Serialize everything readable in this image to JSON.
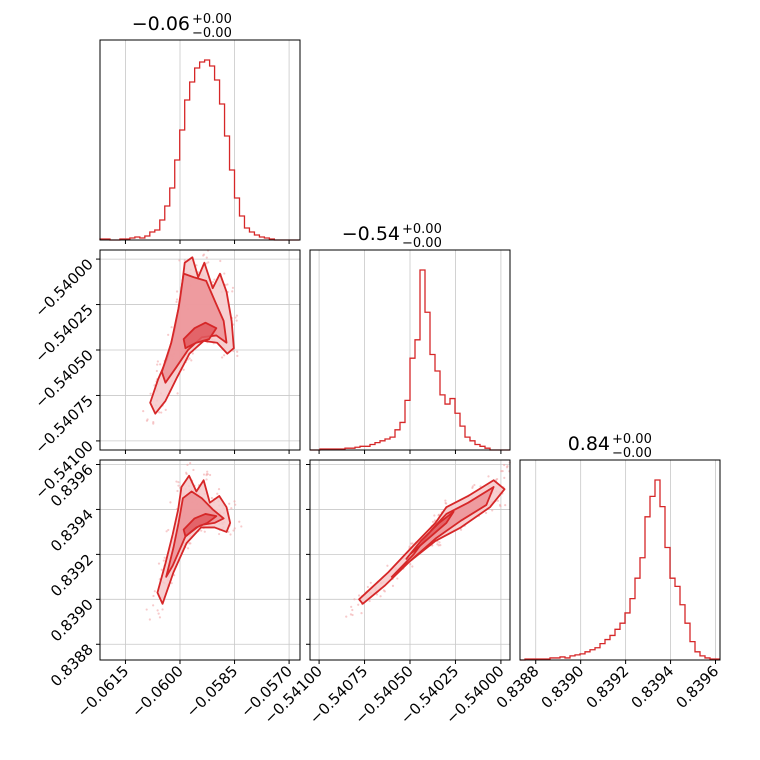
{
  "chart_data": {
    "type": "corner",
    "color": "#d62728",
    "fill_colors": [
      "#f6c8c9",
      "#ec9296",
      "#e05a5f"
    ],
    "grid": true,
    "parameters": [
      {
        "title": "−0.06",
        "title_sup": "+0.00",
        "title_sub": "−0.00",
        "range": [
          -0.0622,
          -0.0567
        ],
        "ticks": [
          -0.0615,
          -0.06,
          -0.0585,
          -0.057
        ],
        "tick_labels": [
          "−0.0615",
          "−0.0600",
          "−0.0585",
          "−0.0570"
        ],
        "histogram": {
          "start": -0.0622,
          "bin_width": 0.000137,
          "counts": [
            1,
            1,
            0,
            0,
            1,
            1,
            2,
            3,
            2,
            4,
            8,
            10,
            20,
            34,
            52,
            80,
            110,
            140,
            158,
            172,
            178,
            180,
            174,
            160,
            136,
            104,
            70,
            42,
            24,
            12,
            8,
            5,
            3,
            2,
            1,
            0,
            0,
            0,
            0,
            0
          ]
        }
      },
      {
        "title": "−0.54",
        "title_sup": "+0.00",
        "title_sub": "−0.00",
        "range": [
          -0.54105,
          -0.53995
        ],
        "ticks": [
          -0.541,
          -0.54075,
          -0.5405,
          -0.54025,
          -0.54
        ],
        "tick_labels": [
          "−0.54100",
          "−0.54075",
          "−0.54050",
          "−0.54025",
          "−0.54000"
        ],
        "histogram": {
          "start": -0.54105,
          "bin_width": 2.75e-05,
          "counts": [
            0,
            0,
            1,
            1,
            1,
            1,
            1,
            2,
            2,
            3,
            4,
            4,
            6,
            8,
            10,
            12,
            14,
            22,
            30,
            54,
            100,
            120,
            196,
            150,
            104,
            86,
            60,
            50,
            56,
            40,
            26,
            14,
            10,
            6,
            4,
            2,
            0,
            0,
            0,
            0
          ]
        }
      },
      {
        "title": "0.84",
        "title_sup": "+0.00",
        "title_sub": "−0.00",
        "range": [
          0.83873,
          0.83962
        ],
        "ticks": [
          0.8388,
          0.839,
          0.8392,
          0.8394,
          0.8396
        ],
        "tick_labels": [
          "0.8388",
          "0.8390",
          "0.8392",
          "0.8394",
          "0.8396"
        ],
        "histogram": {
          "start": 0.83873,
          "bin_width": 2.225e-05,
          "counts": [
            0,
            1,
            1,
            1,
            1,
            1,
            2,
            2,
            3,
            2,
            4,
            5,
            6,
            8,
            10,
            12,
            16,
            20,
            24,
            30,
            36,
            46,
            60,
            80,
            100,
            140,
            160,
            176,
            150,
            110,
            80,
            72,
            54,
            36,
            18,
            8,
            4,
            2,
            1,
            1
          ]
        }
      }
    ],
    "pairs": [
      {
        "x": 0,
        "y": 1,
        "levels": [
          [
            [
              -0.06082,
              -0.54079
            ],
            [
              -0.0606,
              -0.54066
            ],
            [
              -0.06036,
              -0.54055
            ],
            [
              -0.06016,
              -0.5404
            ],
            [
              -0.05999,
              -0.54022
            ],
            [
              -0.05987,
              -0.54002
            ],
            [
              -0.05966,
              -0.53999
            ],
            [
              -0.0595,
              -0.5401
            ],
            [
              -0.05933,
              -0.54002
            ],
            [
              -0.0591,
              -0.54016
            ],
            [
              -0.0589,
              -0.54008
            ],
            [
              -0.05872,
              -0.54018
            ],
            [
              -0.05858,
              -0.54034
            ],
            [
              -0.05852,
              -0.54049
            ],
            [
              -0.0587,
              -0.54052
            ],
            [
              -0.05898,
              -0.54046
            ],
            [
              -0.05935,
              -0.54045
            ],
            [
              -0.05974,
              -0.54052
            ],
            [
              -0.06008,
              -0.54065
            ],
            [
              -0.0604,
              -0.54078
            ],
            [
              -0.06068,
              -0.54085
            ]
          ],
          [
            [
              -0.0605,
              -0.54062
            ],
            [
              -0.06024,
              -0.54046
            ],
            [
              -0.06004,
              -0.54027
            ],
            [
              -0.0599,
              -0.54008
            ],
            [
              -0.05962,
              -0.5401
            ],
            [
              -0.05928,
              -0.54012
            ],
            [
              -0.05902,
              -0.54024
            ],
            [
              -0.0588,
              -0.54034
            ],
            [
              -0.05872,
              -0.54046
            ],
            [
              -0.059,
              -0.54042
            ],
            [
              -0.0594,
              -0.54043
            ],
            [
              -0.05978,
              -0.5405
            ],
            [
              -0.06012,
              -0.5406
            ],
            [
              -0.0604,
              -0.54068
            ]
          ],
          [
            [
              -0.0599,
              -0.54044
            ],
            [
              -0.0596,
              -0.54038
            ],
            [
              -0.0593,
              -0.54035
            ],
            [
              -0.059,
              -0.54038
            ],
            [
              -0.0592,
              -0.54044
            ],
            [
              -0.05955,
              -0.54046
            ],
            [
              -0.05985,
              -0.54049
            ]
          ]
        ]
      },
      {
        "x": 0,
        "y": 2,
        "levels": [
          [
            [
              -0.06062,
              0.83903
            ],
            [
              -0.0604,
              0.83916
            ],
            [
              -0.0602,
              0.83929
            ],
            [
              -0.06005,
              0.8394
            ],
            [
              -0.05996,
              0.8395
            ],
            [
              -0.05975,
              0.83955
            ],
            [
              -0.05955,
              0.83948
            ],
            [
              -0.05935,
              0.83953
            ],
            [
              -0.05918,
              0.83943
            ],
            [
              -0.05892,
              0.83946
            ],
            [
              -0.05872,
              0.83941
            ],
            [
              -0.05862,
              0.83934
            ],
            [
              -0.05872,
              0.8393
            ],
            [
              -0.05905,
              0.83932
            ],
            [
              -0.05942,
              0.83932
            ],
            [
              -0.05982,
              0.83925
            ],
            [
              -0.06018,
              0.83912
            ],
            [
              -0.06048,
              0.83898
            ]
          ],
          [
            [
              -0.06038,
              0.8391
            ],
            [
              -0.06018,
              0.83923
            ],
            [
              -0.06004,
              0.83934
            ],
            [
              -0.05992,
              0.83945
            ],
            [
              -0.05968,
              0.83948
            ],
            [
              -0.0594,
              0.83945
            ],
            [
              -0.0591,
              0.8394
            ],
            [
              -0.0588,
              0.83936
            ],
            [
              -0.05905,
              0.83934
            ],
            [
              -0.05945,
              0.83933
            ],
            [
              -0.05985,
              0.83928
            ],
            [
              -0.0602,
              0.83915
            ]
          ],
          [
            [
              -0.0599,
              0.83931
            ],
            [
              -0.0596,
              0.83936
            ],
            [
              -0.0593,
              0.83938
            ],
            [
              -0.059,
              0.83937
            ],
            [
              -0.05925,
              0.83934
            ],
            [
              -0.05955,
              0.83932
            ],
            [
              -0.05985,
              0.83928
            ]
          ]
        ]
      },
      {
        "x": 1,
        "y": 2,
        "levels": [
          [
            [
              -0.54078,
              0.839
            ],
            [
              -0.54062,
              0.83912
            ],
            [
              -0.54048,
              0.83924
            ],
            [
              -0.54036,
              0.83934
            ],
            [
              -0.5403,
              0.83941
            ],
            [
              -0.54018,
              0.83946
            ],
            [
              -0.54004,
              0.83953
            ],
            [
              -0.53998,
              0.83949
            ],
            [
              -0.54006,
              0.83941
            ],
            [
              -0.54022,
              0.83932
            ],
            [
              -0.54036,
              0.83926
            ],
            [
              -0.5405,
              0.83917
            ],
            [
              -0.54064,
              0.83906
            ],
            [
              -0.54076,
              0.83898
            ]
          ],
          [
            [
              -0.5406,
              0.8391
            ],
            [
              -0.54048,
              0.8392
            ],
            [
              -0.54038,
              0.83931
            ],
            [
              -0.5403,
              0.83938
            ],
            [
              -0.54018,
              0.83943
            ],
            [
              -0.54004,
              0.8395
            ],
            [
              -0.54008,
              0.83942
            ],
            [
              -0.54022,
              0.83935
            ],
            [
              -0.54036,
              0.83927
            ],
            [
              -0.5405,
              0.83917
            ]
          ],
          [
            [
              -0.54052,
              0.83918
            ],
            [
              -0.54044,
              0.83926
            ],
            [
              -0.54034,
              0.83934
            ],
            [
              -0.54026,
              0.83939
            ],
            [
              -0.5403,
              0.83934
            ],
            [
              -0.5404,
              0.83927
            ],
            [
              -0.5405,
              0.8392
            ]
          ]
        ]
      }
    ]
  }
}
